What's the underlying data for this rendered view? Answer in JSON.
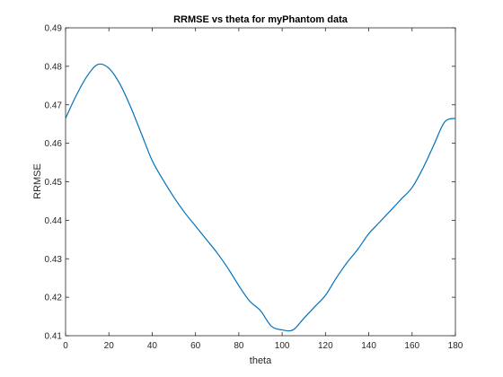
{
  "chart_data": {
    "type": "line",
    "title": "RRMSE vs theta for myPhantom data",
    "xlabel": "theta",
    "ylabel": "RRMSE",
    "xlim": [
      0,
      180
    ],
    "ylim": [
      0.41,
      0.49
    ],
    "x_ticks": [
      0,
      20,
      40,
      60,
      80,
      100,
      120,
      140,
      160,
      180
    ],
    "y_ticks": [
      0.41,
      0.42,
      0.43,
      0.44,
      0.45,
      0.46,
      0.47,
      0.48,
      0.49
    ],
    "x_tick_labels": [
      "0",
      "20",
      "40",
      "60",
      "80",
      "100",
      "120",
      "140",
      "160",
      "180"
    ],
    "y_tick_labels": [
      "0.41",
      "0.42",
      "0.43",
      "0.44",
      "0.45",
      "0.46",
      "0.47",
      "0.48",
      "0.49"
    ],
    "grid": false,
    "line_color": "#0072BD",
    "series": [
      {
        "x": [
          0,
          5,
          10,
          15,
          20,
          25,
          30,
          35,
          40,
          45,
          50,
          55,
          60,
          65,
          70,
          75,
          80,
          85,
          90,
          95,
          100,
          105,
          110,
          115,
          120,
          125,
          130,
          135,
          140,
          145,
          150,
          155,
          160,
          165,
          170,
          175,
          180
        ],
        "y": [
          0.4665,
          0.4725,
          0.4775,
          0.4805,
          0.4795,
          0.4755,
          0.4695,
          0.4625,
          0.4555,
          0.4505,
          0.446,
          0.442,
          0.4385,
          0.435,
          0.4315,
          0.4275,
          0.423,
          0.419,
          0.4165,
          0.4125,
          0.4115,
          0.4115,
          0.4145,
          0.4175,
          0.4205,
          0.425,
          0.429,
          0.4325,
          0.4365,
          0.4395,
          0.4425,
          0.4455,
          0.4485,
          0.4535,
          0.4595,
          0.4655,
          0.4665
        ]
      }
    ]
  }
}
